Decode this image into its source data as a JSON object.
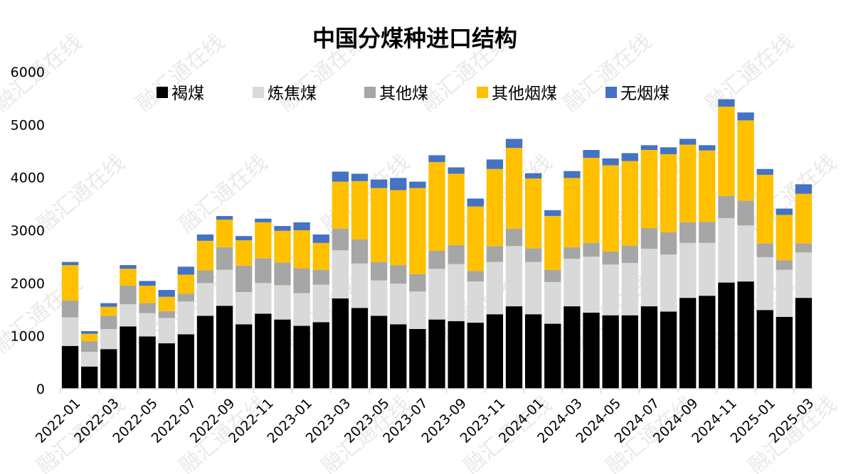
{
  "chart_data": {
    "type": "bar",
    "stacked": true,
    "title": "中国分煤种进口结构",
    "xlabel": "",
    "ylabel": "",
    "ylim": [
      0,
      6000
    ],
    "yticks": [
      0,
      1000,
      2000,
      3000,
      4000,
      5000,
      6000
    ],
    "grid": false,
    "legend_position": "top",
    "categories": [
      "2022-01",
      "2022-02",
      "2022-03",
      "2022-04",
      "2022-05",
      "2022-06",
      "2022-07",
      "2022-08",
      "2022-09",
      "2022-10",
      "2022-11",
      "2022-12",
      "2023-01",
      "2023-02",
      "2023-03",
      "2023-04",
      "2023-05",
      "2023-06",
      "2023-07",
      "2023-08",
      "2023-09",
      "2023-10",
      "2023-11",
      "2023-12",
      "2024-01",
      "2024-02",
      "2024-03",
      "2024-04",
      "2024-05",
      "2024-06",
      "2024-07",
      "2024-08",
      "2024-09",
      "2024-10",
      "2024-11",
      "2024-12",
      "2025-01",
      "2025-02",
      "2025-03"
    ],
    "xtick_labels": [
      "2022-01",
      "2022-03",
      "2022-05",
      "2022-07",
      "2022-09",
      "2022-11",
      "2023-01",
      "2023-03",
      "2023-05",
      "2023-07",
      "2023-09",
      "2023-11",
      "2024-01",
      "2024-03",
      "2024-05",
      "2024-07",
      "2024-09",
      "2024-11",
      "2025-01",
      "2025-03"
    ],
    "series": [
      {
        "name": "褐煤",
        "color": "#000000",
        "values": [
          810,
          420,
          750,
          1180,
          990,
          860,
          1030,
          1380,
          1570,
          1220,
          1420,
          1310,
          1190,
          1260,
          1710,
          1530,
          1380,
          1220,
          1130,
          1310,
          1280,
          1250,
          1410,
          1560,
          1410,
          1230,
          1560,
          1440,
          1390,
          1390,
          1560,
          1460,
          1720,
          1760,
          2010,
          2030,
          1490,
          1360,
          1720
        ]
      },
      {
        "name": "炼焦煤",
        "color": "#D9D9D9",
        "values": [
          540,
          280,
          380,
          420,
          440,
          480,
          620,
          620,
          680,
          610,
          580,
          650,
          620,
          710,
          910,
          840,
          670,
          770,
          710,
          960,
          1080,
          780,
          990,
          1140,
          990,
          790,
          900,
          1060,
          960,
          990,
          1090,
          1080,
          1040,
          1000,
          1220,
          1060,
          1000,
          890,
          860
        ]
      },
      {
        "name": "其他煤",
        "color": "#A6A6A6",
        "values": [
          320,
          200,
          250,
          350,
          190,
          130,
          150,
          240,
          430,
          500,
          470,
          430,
          470,
          280,
          410,
          460,
          350,
          350,
          330,
          340,
          360,
          200,
          300,
          330,
          260,
          230,
          220,
          260,
          250,
          330,
          390,
          420,
          390,
          400,
          420,
          470,
          260,
          180,
          170
        ]
      },
      {
        "name": "其他烟煤",
        "color": "#FFC000",
        "values": [
          670,
          140,
          170,
          320,
          330,
          270,
          360,
          560,
          520,
          480,
          680,
          600,
          720,
          510,
          890,
          1100,
          1400,
          1420,
          1630,
          1680,
          1350,
          1220,
          1460,
          1530,
          1320,
          1020,
          1310,
          1610,
          1630,
          1600,
          1480,
          1480,
          1470,
          1350,
          1690,
          1520,
          1300,
          860,
          940
        ]
      },
      {
        "name": "无烟煤",
        "color": "#4472C4",
        "values": [
          60,
          50,
          70,
          70,
          90,
          130,
          150,
          120,
          70,
          80,
          70,
          90,
          150,
          160,
          190,
          140,
          160,
          230,
          120,
          130,
          120,
          150,
          180,
          170,
          100,
          110,
          130,
          150,
          130,
          150,
          90,
          130,
          110,
          100,
          140,
          150,
          110,
          120,
          180
        ]
      }
    ]
  },
  "watermark": "融汇通在线"
}
